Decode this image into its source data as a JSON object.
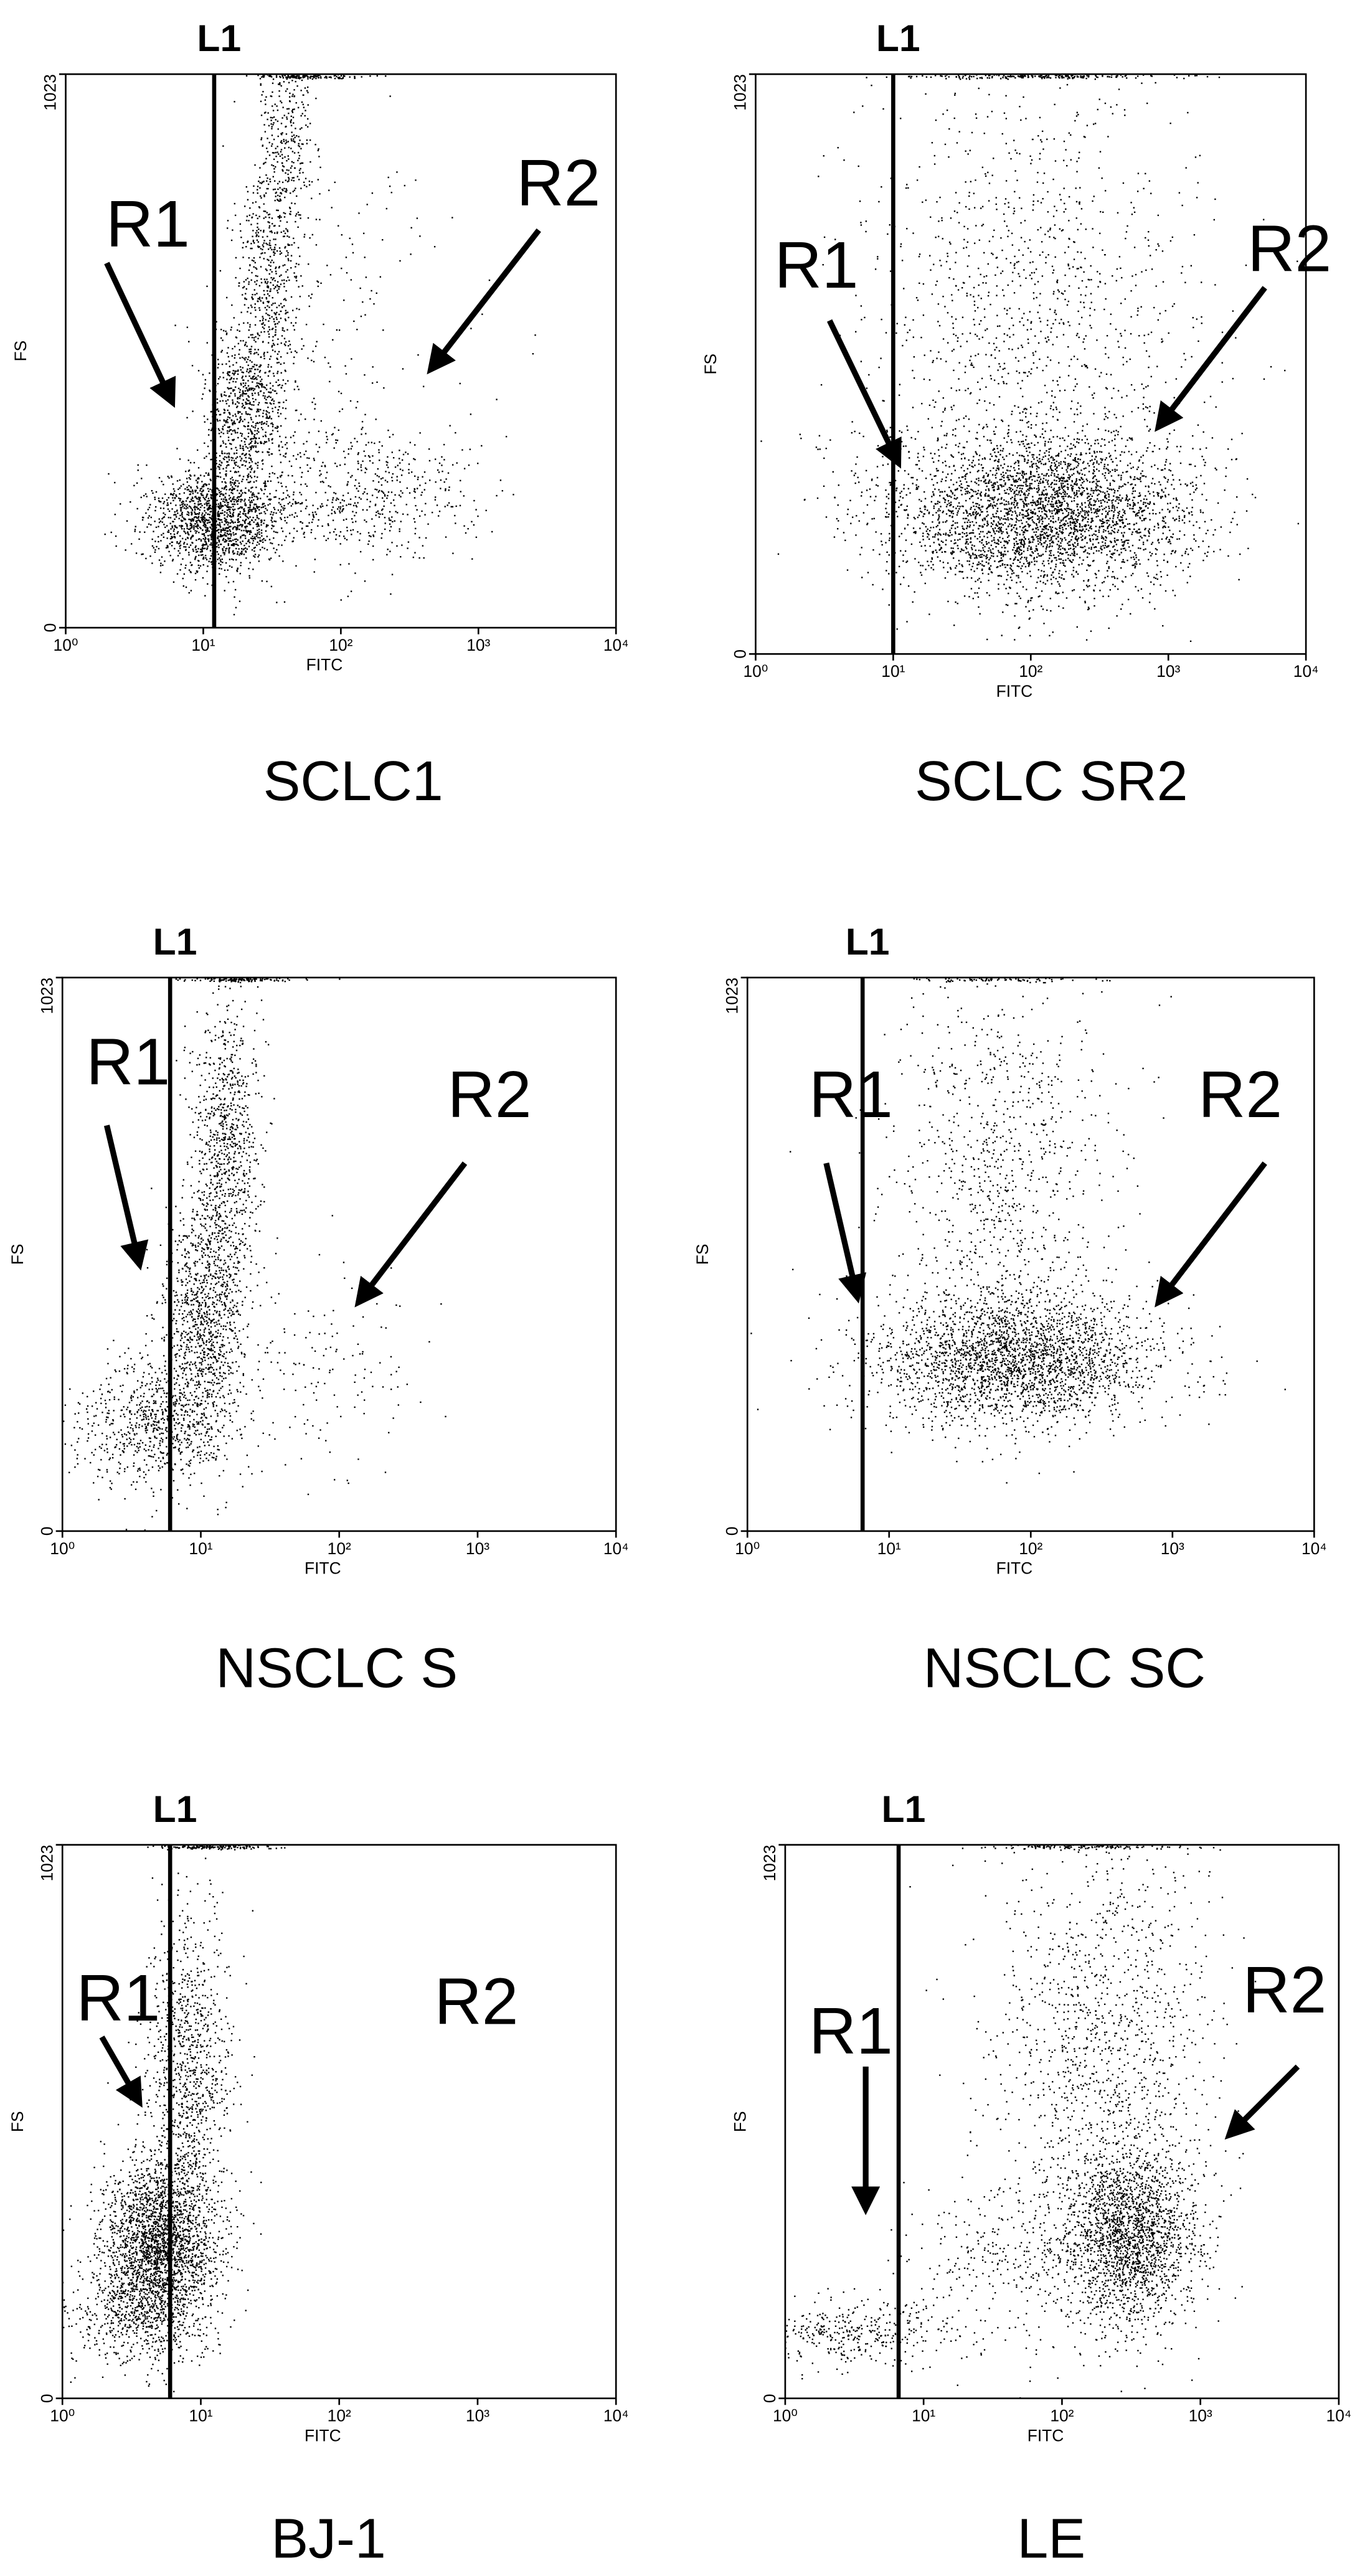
{
  "chart_data": [
    {
      "type": "scatter",
      "title": "SCLC1",
      "l1_label": "L1",
      "l1_x": 12,
      "r1_label": "R1",
      "r2_label": "R2",
      "x_label": "FITC",
      "y_label": "FS",
      "xlog": true,
      "xlim": [
        1,
        10000
      ],
      "xticks": [
        {
          "value": 1,
          "label": "10⁰"
        },
        {
          "value": 10,
          "label": "10¹"
        },
        {
          "value": 100,
          "label": "10²"
        },
        {
          "value": 1000,
          "label": "10³"
        },
        {
          "value": 10000,
          "label": "10⁴"
        }
      ],
      "ylim": [
        0,
        1023
      ],
      "yticks": [
        0,
        1023
      ],
      "clusters": [
        {
          "x": 12,
          "y": 200,
          "sx": 0.25,
          "sy": 50,
          "n": 1500
        },
        {
          "x": 20,
          "y": 400,
          "sx": 0.15,
          "sy": 80,
          "n": 800
        },
        {
          "x": 30,
          "y": 650,
          "sx": 0.12,
          "sy": 100,
          "n": 500
        },
        {
          "x": 40,
          "y": 900,
          "sx": 0.1,
          "sy": 80,
          "n": 300
        },
        {
          "x": 150,
          "y": 250,
          "sx": 0.4,
          "sy": 60,
          "n": 500
        },
        {
          "x": 100,
          "y": 500,
          "sx": 0.5,
          "sy": 200,
          "n": 200
        },
        {
          "x": 50,
          "y": 1020,
          "sx": 0.2,
          "sy": 2,
          "n": 150
        }
      ]
    },
    {
      "type": "scatter",
      "title": "SCLC SR2",
      "l1_label": "L1",
      "l1_x": 10,
      "r1_label": "R1",
      "r2_label": "R2",
      "x_label": "FITC",
      "y_label": "FS",
      "xlog": true,
      "xlim": [
        1,
        10000
      ],
      "xticks": [
        {
          "value": 1,
          "label": "10⁰"
        },
        {
          "value": 10,
          "label": "10¹"
        },
        {
          "value": 100,
          "label": "10²"
        },
        {
          "value": 1000,
          "label": "10³"
        },
        {
          "value": 10000,
          "label": "10⁴"
        }
      ],
      "ylim": [
        0,
        1023
      ],
      "yticks": [
        0,
        1023
      ],
      "clusters": [
        {
          "x": 150,
          "y": 250,
          "sx": 0.5,
          "sy": 70,
          "n": 3000
        },
        {
          "x": 100,
          "y": 600,
          "sx": 0.6,
          "sy": 220,
          "n": 1200
        },
        {
          "x": 20,
          "y": 250,
          "sx": 0.4,
          "sy": 70,
          "n": 300
        },
        {
          "x": 100,
          "y": 1020,
          "sx": 0.5,
          "sy": 2,
          "n": 200
        }
      ]
    },
    {
      "type": "scatter",
      "title": "NSCLC S",
      "l1_label": "L1",
      "l1_x": 6,
      "r1_label": "R1",
      "r2_label": "R2",
      "x_label": "FITC",
      "y_label": "FS",
      "xlog": true,
      "xlim": [
        1,
        10000
      ],
      "xticks": [
        {
          "value": 1,
          "label": "10⁰"
        },
        {
          "value": 10,
          "label": "10¹"
        },
        {
          "value": 100,
          "label": "10²"
        },
        {
          "value": 1000,
          "label": "10³"
        },
        {
          "value": 10000,
          "label": "10⁴"
        }
      ],
      "ylim": [
        0,
        1023
      ],
      "yticks": [
        0,
        1023
      ],
      "clusters": [
        {
          "x": 5,
          "y": 200,
          "sx": 0.3,
          "sy": 60,
          "n": 800
        },
        {
          "x": 10,
          "y": 400,
          "sx": 0.15,
          "sy": 100,
          "n": 900
        },
        {
          "x": 15,
          "y": 700,
          "sx": 0.12,
          "sy": 150,
          "n": 900
        },
        {
          "x": 60,
          "y": 300,
          "sx": 0.4,
          "sy": 100,
          "n": 150
        },
        {
          "x": 20,
          "y": 1020,
          "sx": 0.2,
          "sy": 2,
          "n": 120
        }
      ]
    },
    {
      "type": "scatter",
      "title": "NSCLC SC",
      "l1_label": "L1",
      "l1_x": 6.5,
      "r1_label": "R1",
      "r2_label": "R2",
      "x_label": "FITC",
      "y_label": "FS",
      "xlog": true,
      "xlim": [
        1,
        10000
      ],
      "xticks": [
        {
          "value": 1,
          "label": "10⁰"
        },
        {
          "value": 10,
          "label": "10¹"
        },
        {
          "value": 100,
          "label": "10²"
        },
        {
          "value": 1000,
          "label": "10³"
        },
        {
          "value": 10000,
          "label": "10⁴"
        }
      ],
      "ylim": [
        0,
        1023
      ],
      "yticks": [
        0,
        1023
      ],
      "clusters": [
        {
          "x": 80,
          "y": 320,
          "sx": 0.5,
          "sy": 60,
          "n": 2500
        },
        {
          "x": 60,
          "y": 650,
          "sx": 0.4,
          "sy": 200,
          "n": 900
        },
        {
          "x": 60,
          "y": 1020,
          "sx": 0.3,
          "sy": 2,
          "n": 80
        }
      ]
    },
    {
      "type": "scatter",
      "title": "BJ-1",
      "l1_label": "L1",
      "l1_x": 6,
      "r1_label": "R1",
      "r2_label": "R2",
      "x_label": "FITC",
      "y_label": "FS",
      "xlog": true,
      "xlim": [
        1,
        10000
      ],
      "xticks": [
        {
          "value": 1,
          "label": "10⁰"
        },
        {
          "value": 10,
          "label": "10¹"
        },
        {
          "value": 100,
          "label": "10²"
        },
        {
          "value": 1000,
          "label": "10³"
        },
        {
          "value": 10000,
          "label": "10⁴"
        }
      ],
      "ylim": [
        0,
        1023
      ],
      "yticks": [
        0,
        1023
      ],
      "clusters": [
        {
          "x": 5,
          "y": 280,
          "sx": 0.2,
          "sy": 80,
          "n": 2500
        },
        {
          "x": 8,
          "y": 600,
          "sx": 0.15,
          "sy": 150,
          "n": 1000
        },
        {
          "x": 3,
          "y": 150,
          "sx": 0.3,
          "sy": 50,
          "n": 400
        },
        {
          "x": 12,
          "y": 1020,
          "sx": 0.2,
          "sy": 2,
          "n": 150
        }
      ]
    },
    {
      "type": "scatter",
      "title": "LE",
      "l1_label": "L1",
      "l1_x": 6.6,
      "r1_label": "R1",
      "r2_label": "R2",
      "x_label": "FITC",
      "y_label": "FS",
      "xlog": true,
      "xlim": [
        1,
        10000
      ],
      "xticks": [
        {
          "value": 1,
          "label": "10⁰"
        },
        {
          "value": 10,
          "label": "10¹"
        },
        {
          "value": 100,
          "label": "10²"
        },
        {
          "value": 1000,
          "label": "10³"
        },
        {
          "value": 10000,
          "label": "10⁴"
        }
      ],
      "ylim": [
        0,
        1023
      ],
      "yticks": [
        0,
        1023
      ],
      "clusters": [
        {
          "x": 3,
          "y": 120,
          "sx": 0.4,
          "sy": 30,
          "n": 400
        },
        {
          "x": 300,
          "y": 300,
          "sx": 0.25,
          "sy": 80,
          "n": 2000
        },
        {
          "x": 200,
          "y": 650,
          "sx": 0.4,
          "sy": 200,
          "n": 1200
        },
        {
          "x": 40,
          "y": 250,
          "sx": 0.4,
          "sy": 80,
          "n": 300
        },
        {
          "x": 150,
          "y": 1020,
          "sx": 0.4,
          "sy": 2,
          "n": 120
        }
      ]
    }
  ]
}
